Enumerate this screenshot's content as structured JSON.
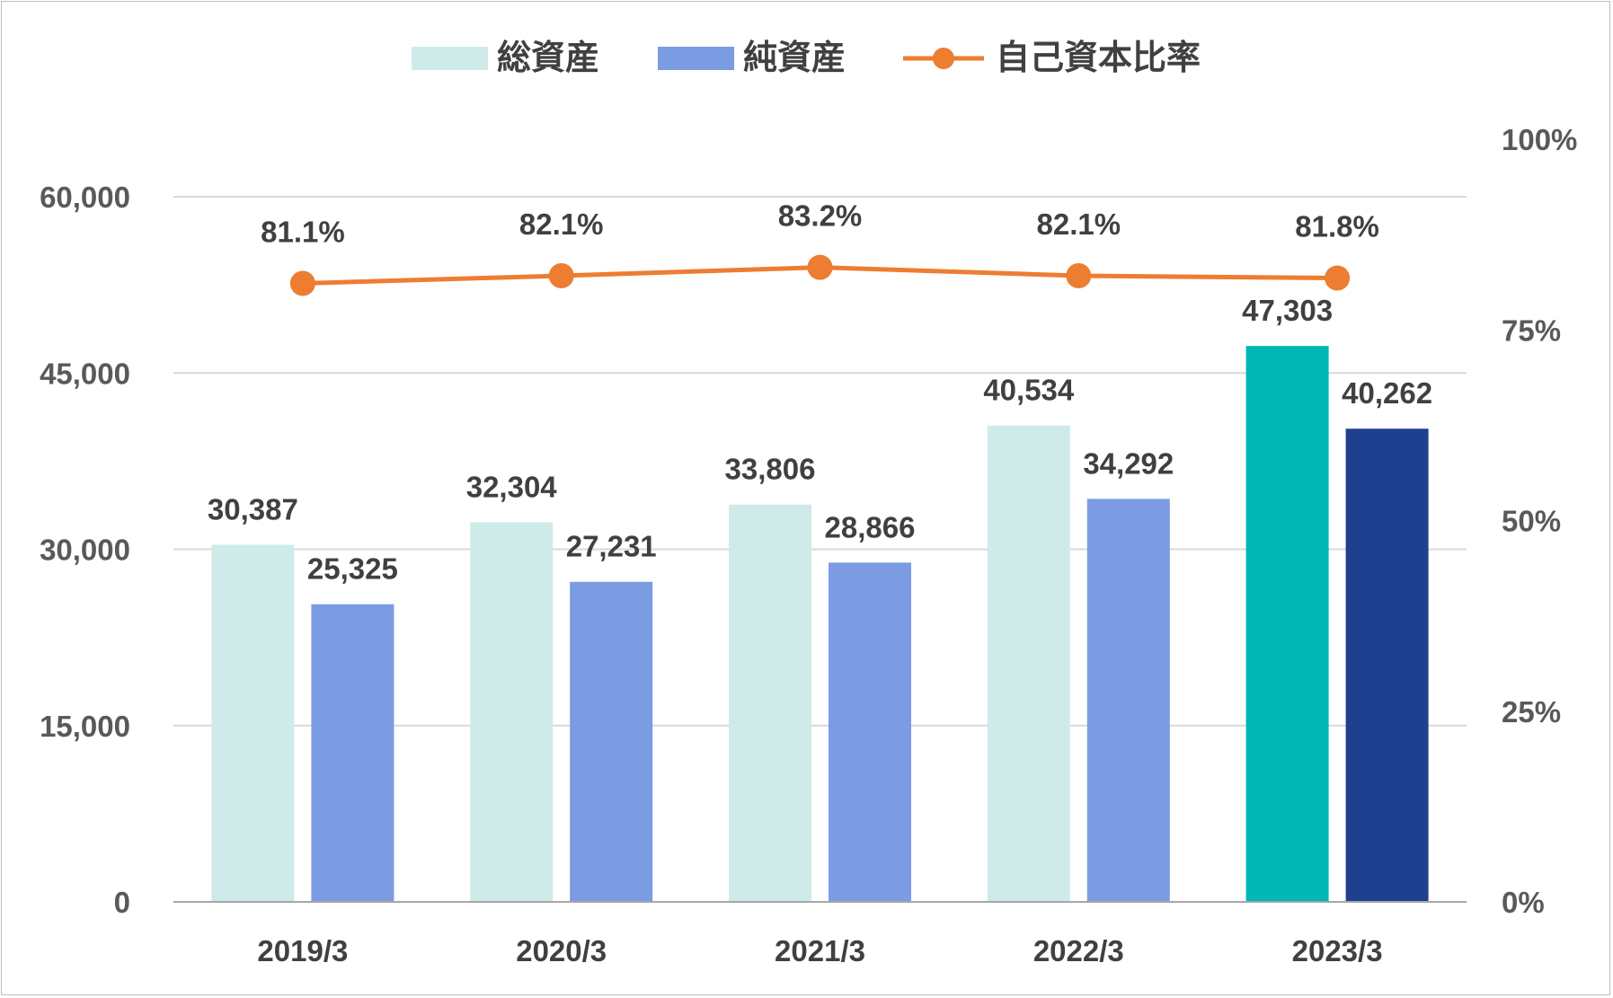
{
  "colors": {
    "total_assets": "#cfebe9",
    "net_assets": "#7b9be3",
    "total_assets_latest": "#00b7b3",
    "net_assets_latest": "#1f3f8f",
    "equity_ratio": "#ed7d31",
    "gridline": "#d9d9d9",
    "axis_line": "#a6a6a6"
  },
  "chart_data": {
    "type": "bar",
    "categories": [
      "2019/3",
      "2020/3",
      "2021/3",
      "2022/3",
      "2023/3"
    ],
    "series": [
      {
        "name": "総資産",
        "kind": "bar",
        "axis": "left",
        "values": [
          30387,
          32304,
          33806,
          40534,
          47303
        ],
        "labels": [
          "30,387",
          "32,304",
          "33,806",
          "40,534",
          "47,303"
        ]
      },
      {
        "name": "純資産",
        "kind": "bar",
        "axis": "left",
        "values": [
          25325,
          27231,
          28866,
          34292,
          40262
        ],
        "labels": [
          "25,325",
          "27,231",
          "28,866",
          "34,292",
          "40,262"
        ]
      },
      {
        "name": "自己資本比率",
        "kind": "line",
        "axis": "right",
        "values": [
          81.1,
          82.1,
          83.2,
          82.1,
          81.8
        ],
        "labels": [
          "81.1%",
          "82.1%",
          "83.2%",
          "82.1%",
          "81.8%"
        ]
      }
    ],
    "y_left": {
      "range": [
        0,
        60000
      ],
      "ticks": [
        0,
        15000,
        30000,
        45000,
        60000
      ],
      "tick_labels": [
        "0",
        "15,000",
        "30,000",
        "45,000",
        "60,000"
      ]
    },
    "y_right": {
      "range": [
        0,
        100
      ],
      "ticks": [
        0,
        25,
        50,
        75,
        100
      ],
      "tick_labels": [
        "0%",
        "25%",
        "50%",
        "75%",
        "100%"
      ]
    },
    "highlighted_category": "2023/3",
    "grid": true,
    "legend_position": "top"
  }
}
